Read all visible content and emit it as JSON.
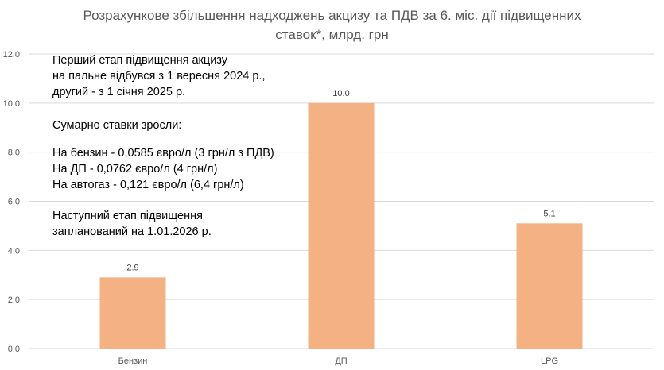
{
  "title_lines": [
    "Розрахункове збільшення надходжень акцизу та ПДВ за 6. міс. дії підвищенних",
    "ставок*, млрд. грн"
  ],
  "annotation": {
    "para1": [
      "Перший етап підвищення акцизу",
      "на пальне відбувся з 1 вересня 2024 р.,",
      "другий - з 1 січня 2025 р."
    ],
    "para2": [
      "Сумарно ставки зросли:"
    ],
    "para3": [
      "На бензин - 0,0585 євро/л (3 грн/л з ПДВ)",
      "На ДП - 0,0762 євро/л (4 грн/л)",
      "На автогаз - 0,121 євро/л (6,4 грн/л)"
    ],
    "para4": [
      "Наступний етап підвищення",
      "запланований на 1.01.2026 р."
    ]
  },
  "chart_data": {
    "type": "bar",
    "title": "Розрахункове збільшення надходжень акцизу та ПДВ за 6. міс. дії підвищенних ставок*, млрд. грн",
    "categories": [
      "Бензин",
      "ДП",
      "LPG"
    ],
    "values": [
      2.9,
      10.0,
      5.1
    ],
    "data_labels": [
      "2.9",
      "10.0",
      "5.1"
    ],
    "ylim": [
      0,
      12
    ],
    "yticks": [
      "0.0",
      "2.0",
      "4.0",
      "6.0",
      "8.0",
      "10.0",
      "12.0"
    ],
    "grid": true,
    "bar_color": "#F4B183",
    "grid_color": "#D9D9D9"
  }
}
